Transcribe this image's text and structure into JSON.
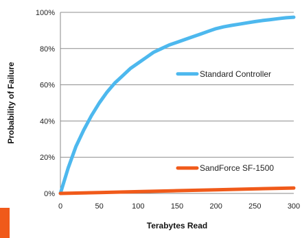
{
  "chart_data": {
    "type": "line",
    "xlabel": "Terabytes Read",
    "ylabel": "Probability of Failure",
    "xlim": [
      0,
      300
    ],
    "ylim": [
      0,
      100
    ],
    "xticks": [
      "0",
      "50",
      "100",
      "150",
      "200",
      "250",
      "300"
    ],
    "yticks": [
      "0%",
      "20%",
      "40%",
      "60%",
      "80%",
      "100%"
    ],
    "grid": "horizontal",
    "legend": "inline labels, right side of plot",
    "series": [
      {
        "name": "Standard Controller",
        "color": "#4db8ee",
        "x": [
          0,
          10,
          20,
          30,
          40,
          50,
          60,
          70,
          80,
          90,
          100,
          110,
          120,
          130,
          140,
          150,
          160,
          170,
          180,
          190,
          200,
          210,
          220,
          230,
          240,
          250,
          260,
          270,
          280,
          290,
          300
        ],
        "y": [
          0,
          14,
          26,
          35,
          43,
          50,
          56,
          61,
          65,
          69,
          72,
          75,
          78,
          80,
          82,
          83.5,
          85,
          86.5,
          88,
          89.5,
          91,
          92,
          92.8,
          93.5,
          94.2,
          94.9,
          95.5,
          96,
          96.5,
          97,
          97.3
        ]
      },
      {
        "name": "SandForce SF-1500",
        "color": "#f05a1a",
        "x": [
          0,
          50,
          100,
          150,
          200,
          250,
          300
        ],
        "y": [
          0,
          0.5,
          1,
          1.5,
          2,
          2.5,
          3
        ]
      }
    ]
  }
}
